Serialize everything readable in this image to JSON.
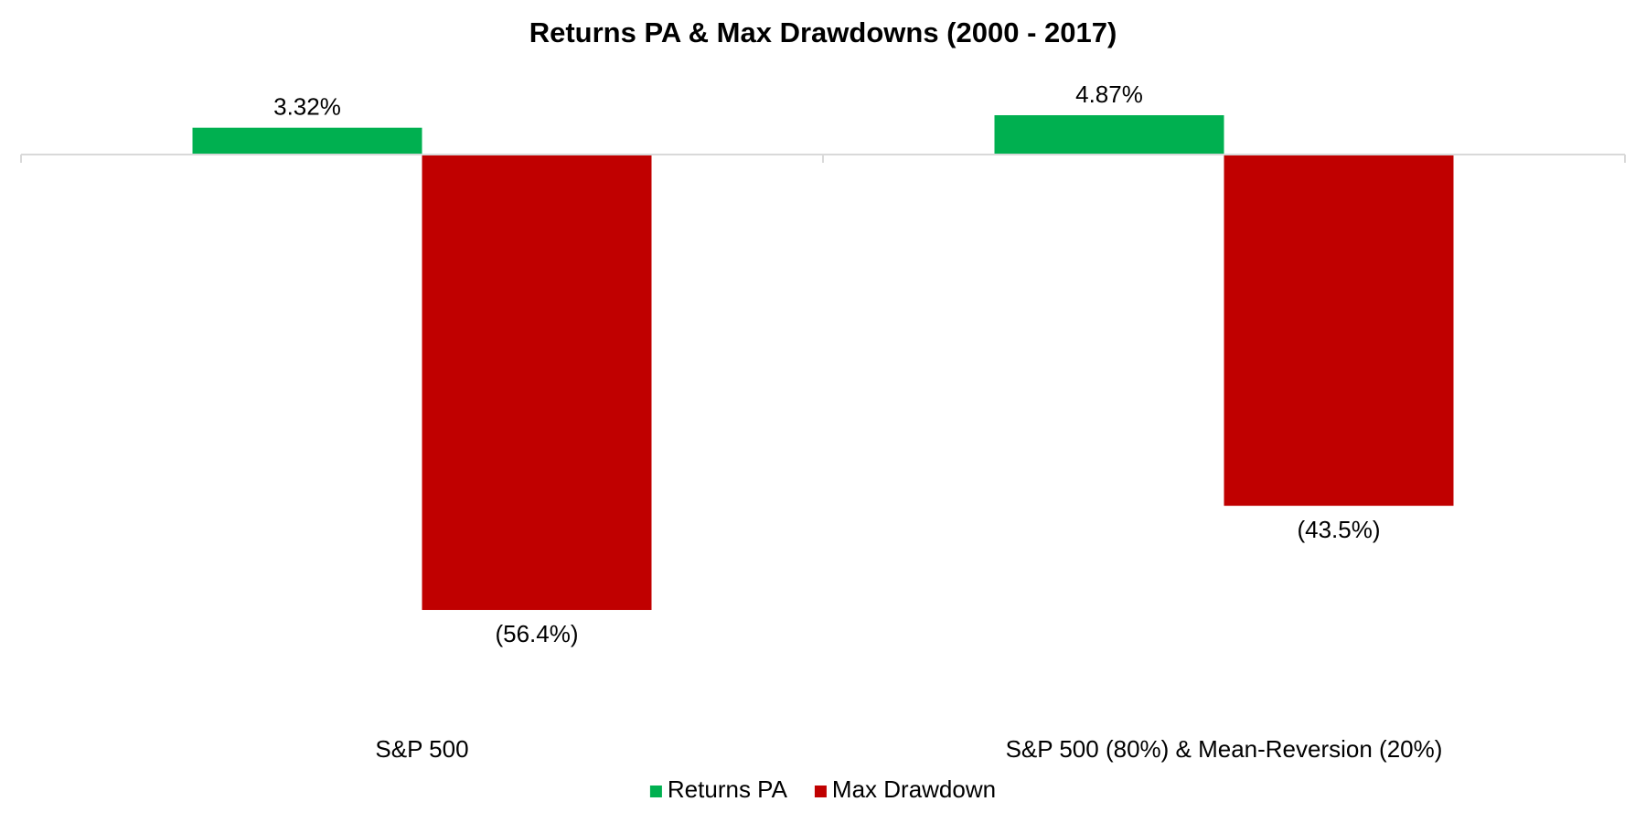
{
  "chart_data": {
    "type": "bar",
    "title": "Returns PA & Max Drawdowns (2000 - 2017)",
    "categories": [
      "S&P 500",
      "S&P 500 (80%) & Mean-Reversion (20%)"
    ],
    "series": [
      {
        "name": "Returns PA",
        "values": [
          3.32,
          4.87
        ],
        "labels": [
          "3.32%",
          "4.87%"
        ],
        "color": "#00B050"
      },
      {
        "name": "Max Drawdown",
        "values": [
          -56.4,
          -43.5
        ],
        "labels": [
          "(56.4%)",
          "(43.5%)"
        ],
        "color": "#C00000"
      }
    ],
    "ylim": [
      -56.4,
      4.87
    ],
    "xlabel": "",
    "ylabel": "",
    "grid": false,
    "legend": "bottom",
    "axis_color": "#D9D9D9"
  }
}
